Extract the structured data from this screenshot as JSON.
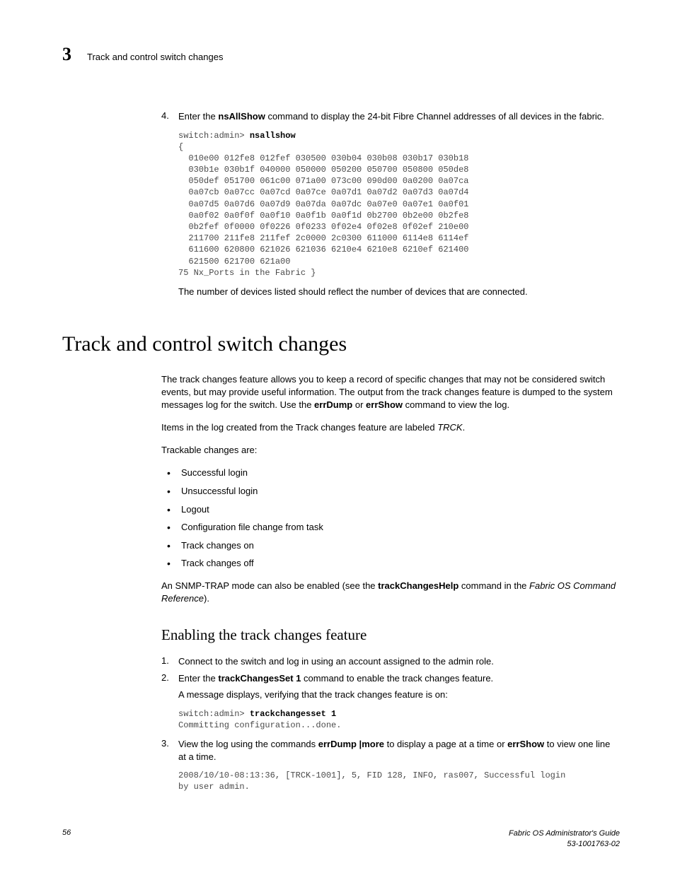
{
  "header": {
    "chapter_num": "3",
    "title": "Track and control switch changes"
  },
  "step4": {
    "num": "4.",
    "text_a": "Enter the ",
    "cmd": "nsAllShow",
    "text_b": " command to display the 24-bit Fibre Channel addresses of all devices in the fabric."
  },
  "code1_prompt": "switch:admin> ",
  "code1_cmd": "nsallshow",
  "code1_body": "{\n  010e00 012fe8 012fef 030500 030b04 030b08 030b17 030b18\n  030b1e 030b1f 040000 050000 050200 050700 050800 050de8\n  050def 051700 061c00 071a00 073c00 090d00 0a0200 0a07ca\n  0a07cb 0a07cc 0a07cd 0a07ce 0a07d1 0a07d2 0a07d3 0a07d4\n  0a07d5 0a07d6 0a07d9 0a07da 0a07dc 0a07e0 0a07e1 0a0f01\n  0a0f02 0a0f0f 0a0f10 0a0f1b 0a0f1d 0b2700 0b2e00 0b2fe8\n  0b2fef 0f0000 0f0226 0f0233 0f02e4 0f02e8 0f02ef 210e00\n  211700 211fe8 211fef 2c0000 2c0300 611000 6114e8 6114ef\n  611600 620800 621026 621036 6210e4 6210e8 6210ef 621400\n  621500 621700 621a00 \n75 Nx_Ports in the Fabric }",
  "after_code1": "The number of devices listed should reflect the number of devices that are connected.",
  "h1": "Track and control switch changes",
  "para1_a": "The track changes feature allows you to keep a record of specific changes that may not be considered switch events, but may provide useful information. The output from the track changes feature is dumped to the system messages log for the switch. Use the ",
  "para1_b": "errDump",
  "para1_c": " or ",
  "para1_d": "errShow",
  "para1_e": " command to view the log.",
  "para2_a": "Items in the log created from the Track changes feature are labeled ",
  "para2_b": "TRCK",
  "para2_c": ".",
  "para3": "Trackable changes are:",
  "bullets": [
    "Successful login",
    "Unsuccessful login",
    "Logout",
    "Configuration file change from task",
    "Track changes on",
    "Track changes off"
  ],
  "para4_a": "An SNMP-TRAP mode can also be enabled (see the ",
  "para4_b": "trackChangesHelp",
  "para4_c": " command in the ",
  "para4_d": "Fabric OS Command Reference",
  "para4_e": ").",
  "h2": "Enabling the track changes feature",
  "estep1": {
    "num": "1.",
    "text": "Connect to the switch and log in using an account assigned to the admin role."
  },
  "estep2": {
    "num": "2.",
    "text_a": "Enter the ",
    "cmd": "trackChangesSet 1",
    "text_b": " command to enable the track changes feature.",
    "follow": "A message displays, verifying that the track changes feature is on:"
  },
  "code2_prompt": "switch:admin> ",
  "code2_cmd": "trackchangesset 1",
  "code2_body": "Committing configuration...done.",
  "estep3": {
    "num": "3.",
    "text_a": "View the log using the commands ",
    "cmd1": "errDump |more",
    "text_b": " to display a page at a time or ",
    "cmd2": "errShow",
    "text_c": " to view one line at a time."
  },
  "code3": "2008/10/10-08:13:36, [TRCK-1001], 5, FID 128, INFO, ras007, Successful login\nby user admin.",
  "footer": {
    "page": "56",
    "guide": "Fabric OS Administrator's Guide",
    "docnum": "53-1001763-02"
  }
}
